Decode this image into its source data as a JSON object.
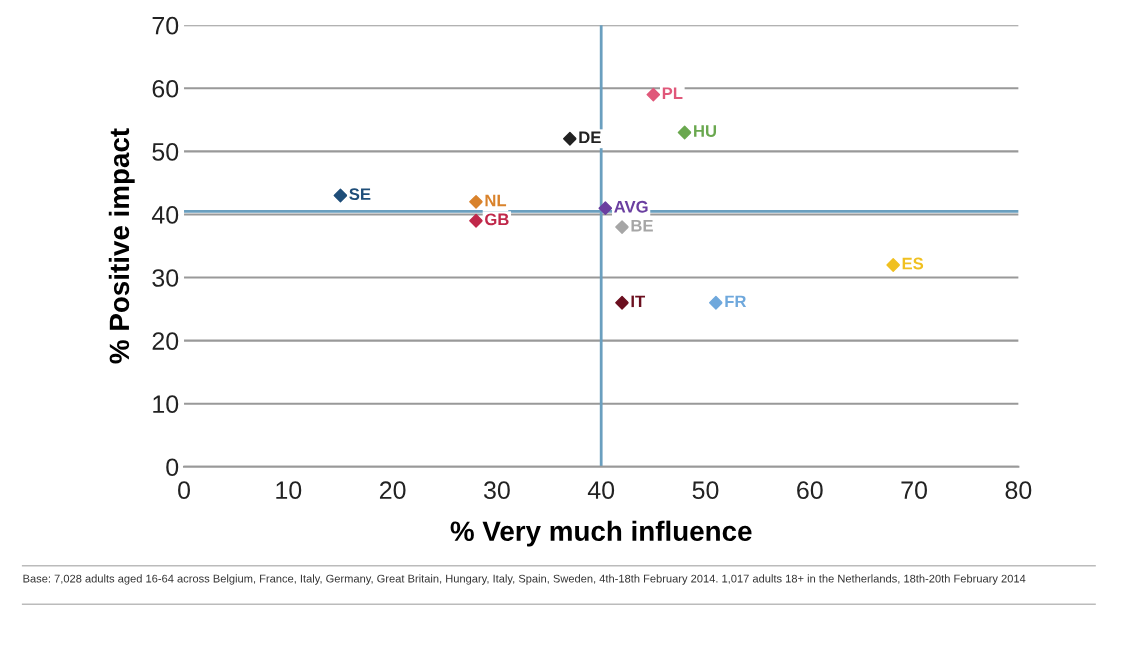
{
  "chart_data": {
    "type": "scatter",
    "xlabel": "% Very much influence",
    "ylabel": "% Positive impact",
    "xlim": [
      0,
      80
    ],
    "xticks": [
      0,
      10,
      20,
      30,
      40,
      50,
      60,
      70,
      80
    ],
    "ylim": [
      0,
      70
    ],
    "yticks": [
      0,
      10,
      20,
      30,
      40,
      50,
      60,
      70
    ],
    "grid": "y",
    "marker": "diamond",
    "legend": false,
    "series": [
      {
        "name": "PL",
        "color": "#e0587a",
        "x": [
          45
        ],
        "values": [
          59
        ]
      },
      {
        "name": "HU",
        "color": "#6aa84f",
        "x": [
          48
        ],
        "values": [
          53
        ]
      },
      {
        "name": "DE",
        "color": "#222222",
        "x": [
          37
        ],
        "values": [
          52
        ]
      },
      {
        "name": "SE",
        "color": "#1f4e79",
        "x": [
          15
        ],
        "values": [
          43
        ]
      },
      {
        "name": "NL",
        "color": "#d9822b",
        "x": [
          28
        ],
        "values": [
          42
        ]
      },
      {
        "name": "AVG",
        "color": "#6a3fa0",
        "x": [
          40.4
        ],
        "values": [
          41
        ]
      },
      {
        "name": "GB",
        "color": "#c0284a",
        "x": [
          28
        ],
        "values": [
          39
        ]
      },
      {
        "name": "BE",
        "color": "#a6a6a6",
        "x": [
          42
        ],
        "values": [
          38
        ]
      },
      {
        "name": "ES",
        "color": "#f0c020",
        "x": [
          68
        ],
        "values": [
          32
        ]
      },
      {
        "name": "IT",
        "color": "#6b0f1f",
        "x": [
          42
        ],
        "values": [
          26
        ]
      },
      {
        "name": "FR",
        "color": "#6fa8dc",
        "x": [
          51
        ],
        "values": [
          26
        ]
      }
    ],
    "ref_lines": [
      {
        "axis": "x",
        "value": 40,
        "color": "#6a9fbf"
      },
      {
        "axis": "y",
        "value": 40.5,
        "color": "#6a9fbf"
      }
    ],
    "annotations": [
      "Base: 7,028 adults aged 16-64 across Belgium, France, Italy, Germany, Great Britain, Hungary, Italy, Spain, Sweden, 4th-18th February 2014. 1,017 adults 18+ in the Netherlands, 18th-20th February 2014"
    ]
  }
}
